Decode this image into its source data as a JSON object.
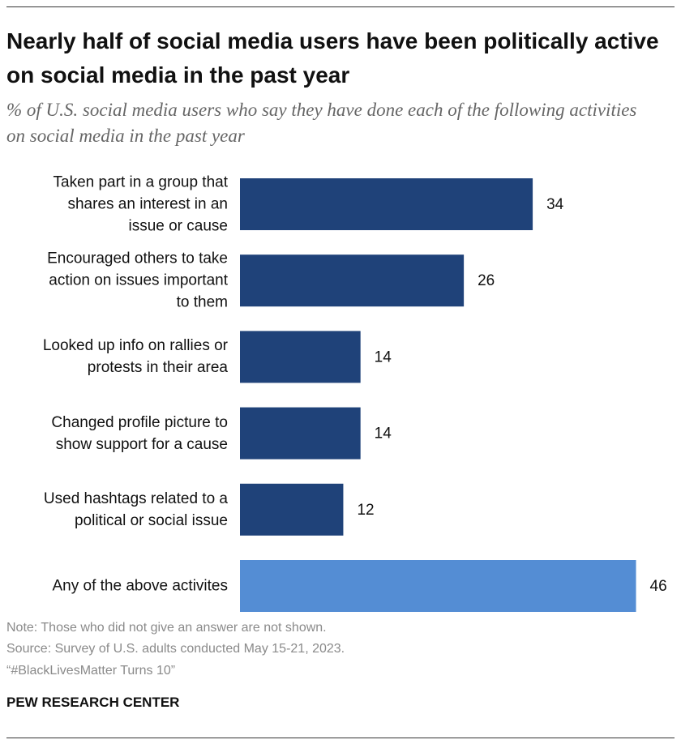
{
  "chart_data": {
    "type": "bar",
    "title": "Nearly half of social media users have been politically active on social media in the past year",
    "subtitle": "% of U.S. social media users who say they have done each of the following activities on social media in the past year",
    "categories": [
      "Taken part in a group that shares an interest in an issue or cause",
      "Encouraged others to take action on issues important to them",
      "Looked up info on rallies or protests in their area",
      "Changed profile picture to show support for a cause",
      "Used hashtags related to a political or social issue",
      "Any of the above activites"
    ],
    "values": [
      34,
      26,
      14,
      14,
      12,
      46
    ],
    "colors": [
      "#1f4279",
      "#1f4279",
      "#1f4279",
      "#1f4279",
      "#1f4279",
      "#548dd4"
    ],
    "note": "Note: Those who did not give an answer are not shown.",
    "source": "Source: Survey of U.S. adults conducted May 15-21, 2023.",
    "report": "“#BlackLivesMatter Turns 10”",
    "brand": "PEW RESEARCH CENTER"
  }
}
